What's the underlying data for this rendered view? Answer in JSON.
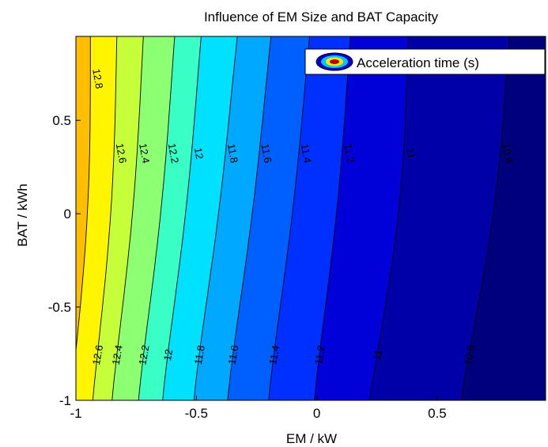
{
  "chart_data": {
    "type": "contour",
    "title": "Influence of EM Size and BAT Capacity",
    "xlabel": "EM / kW",
    "ylabel": "BAT / kWh",
    "xlim": [
      -1,
      0.95
    ],
    "ylim": [
      -1,
      0.95
    ],
    "xticks": [
      -1,
      -0.5,
      0,
      0.5
    ],
    "yticks": [
      -1,
      -0.5,
      0,
      0.5
    ],
    "xtick_labels": [
      "-1",
      "-0.5",
      "0",
      "0.5"
    ],
    "ytick_labels": [
      "-1",
      "-0.5",
      "0",
      "0.5"
    ],
    "legend": {
      "label": "Acceleration time (s)",
      "placement": "top-right"
    },
    "levels": [
      {
        "value": 12.8,
        "label": "12.8",
        "x_bottom": -1.02,
        "x_top": -0.94
      },
      {
        "value": 12.6,
        "label": "12.6",
        "x_bottom": -0.93,
        "x_top": -0.83
      },
      {
        "value": 12.4,
        "label": "12.4",
        "x_bottom": -0.85,
        "x_top": -0.72
      },
      {
        "value": 12.2,
        "label": "12.2",
        "x_bottom": -0.74,
        "x_top": -0.59
      },
      {
        "value": 12.0,
        "label": "12",
        "x_bottom": -0.64,
        "x_top": -0.48
      },
      {
        "value": 11.8,
        "label": "11.8",
        "x_bottom": -0.51,
        "x_top": -0.33
      },
      {
        "value": 11.6,
        "label": "11.6",
        "x_bottom": -0.37,
        "x_top": -0.19
      },
      {
        "value": 11.4,
        "label": "11.4",
        "x_bottom": -0.2,
        "x_top": -0.03
      },
      {
        "value": 11.2,
        "label": "11.2",
        "x_bottom": -0.01,
        "x_top": 0.14
      },
      {
        "value": 11.0,
        "label": "11",
        "x_bottom": 0.22,
        "x_top": 0.38
      },
      {
        "value": 10.8,
        "label": "10.8",
        "x_bottom": 0.6,
        "x_top": 0.8
      }
    ],
    "band_colors": [
      "#7f0000",
      "#b90000",
      "#f20000",
      "#ff3c00",
      "#ff7a00",
      "#ffbf00",
      "#fff500",
      "#c6ff39",
      "#8dff72",
      "#39ffc6",
      "#00e0ff",
      "#00a8ff",
      "#0060ff",
      "#0030ff",
      "#0000d8",
      "#0000a8"
    ],
    "label_rows": {
      "upper_y": 0.32,
      "lower_y": -0.76
    }
  }
}
